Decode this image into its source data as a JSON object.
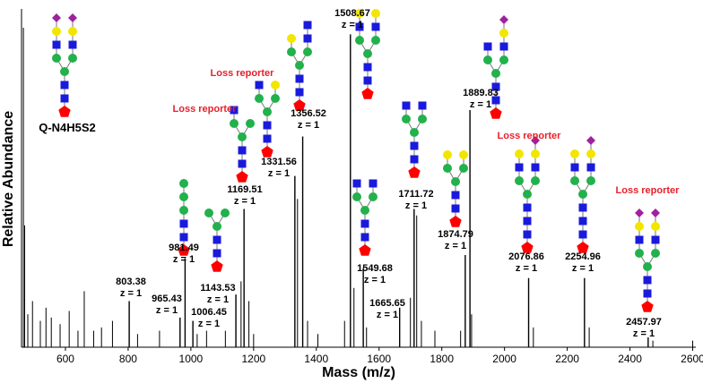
{
  "chart_data": {
    "type": "spectrum",
    "xlabel": "Mass (m/z)",
    "ylabel": "Relative Abundance",
    "xlim": [
      460,
      2610
    ],
    "ylim": [
      0,
      100
    ],
    "xticks": [
      600,
      800,
      1000,
      1200,
      1400,
      1600,
      1800,
      2000,
      2200,
      2400,
      2600
    ],
    "color": "#000000",
    "series": [
      {
        "x": [
          803.38,
          965.43,
          981.49,
          1006.45,
          1143.53,
          1169.51,
          1331.56,
          1356.52,
          1508.67,
          1549.68,
          1665.65,
          1711.72,
          1874.79,
          1889.83,
          2076.86,
          2254.96,
          2457.97
        ],
        "values": [
          14,
          9,
          27,
          8,
          16,
          42,
          52,
          64,
          95,
          24,
          12,
          42,
          28,
          72,
          21,
          21,
          3
        ],
        "charges": [
          "z = 1",
          "z = 1",
          "z = 1",
          "z = 1",
          "z = 1",
          "z = 1",
          "z = 1",
          "z = 1",
          "z = 1",
          "z = 1",
          "z = 1",
          "z = 1",
          "z = 1",
          "z = 1",
          "z = 1",
          "z = 1",
          "z = 1"
        ]
      },
      {
        "x": [
          466,
          470,
          480,
          495,
          520,
          538,
          555,
          583,
          612,
          640,
          660,
          690,
          715,
          750,
          830,
          900,
          1020,
          1050,
          1110,
          1160,
          1185,
          1200,
          1340,
          1372,
          1405,
          1490,
          1520,
          1560,
          1700,
          1720,
          1735,
          1778,
          1860,
          1895,
          2092,
          2270,
          2473,
          2600
        ],
        "values": [
          97,
          37,
          10,
          14,
          8,
          12,
          9,
          7,
          11,
          5,
          17,
          5,
          6,
          8,
          4,
          5,
          4,
          5,
          5,
          20,
          14,
          4,
          45,
          8,
          4,
          8,
          18,
          6,
          15,
          40,
          8,
          5,
          5,
          10,
          6,
          6,
          2,
          2
        ]
      }
    ],
    "annotations": [
      "Q-N4H5S2",
      "Loss reporter",
      "Loss reporter",
      "Loss reporter",
      "Loss reporter"
    ]
  }
}
